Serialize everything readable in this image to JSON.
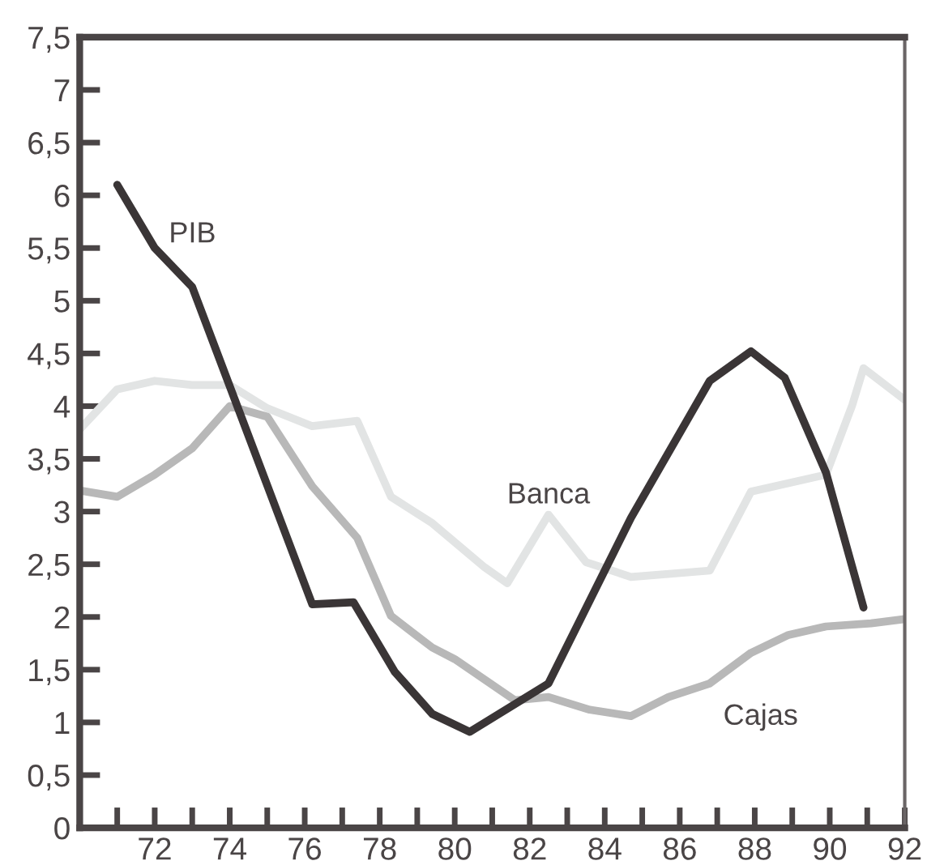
{
  "chart_data": {
    "type": "line",
    "xlim": [
      70,
      92
    ],
    "xticks": [
      {
        "value": 71,
        "label": null
      },
      72,
      {
        "value": 73,
        "label": null
      },
      74,
      {
        "value": 75,
        "label": null
      },
      76,
      {
        "value": 77,
        "label": null
      },
      78,
      {
        "value": 79,
        "label": null
      },
      80,
      {
        "value": 81,
        "label": null
      },
      82,
      {
        "value": 83,
        "label": null
      },
      84,
      {
        "value": 85,
        "label": null
      },
      86,
      {
        "value": 87,
        "label": null
      },
      88,
      {
        "value": 89,
        "label": null
      },
      90,
      {
        "value": 91,
        "label": null
      },
      92
    ],
    "ylim": [
      0,
      7.5
    ],
    "yticks": [
      0,
      {
        "value": 0.5,
        "label": "0,5"
      },
      1,
      {
        "value": 1.5,
        "label": "1,5"
      },
      2,
      {
        "value": 2.5,
        "label": "2,5"
      },
      3,
      {
        "value": 3.5,
        "label": "3,5"
      },
      4,
      {
        "value": 4.5,
        "label": "4,5"
      },
      5,
      {
        "value": 5.5,
        "label": "5,5"
      },
      6,
      {
        "value": 6.5,
        "label": "6,5"
      },
      7,
      {
        "value": 7.5,
        "label": "7,5"
      }
    ],
    "grid": false,
    "marker": "none",
    "line_style": "solid",
    "series": [
      {
        "name": "Banca",
        "color": "#e2e4e4",
        "x": [
          70,
          71,
          72,
          73,
          74,
          75,
          76.2,
          77.4,
          78.3,
          79.4,
          80.8,
          81.4,
          82.5,
          83.5,
          84.7,
          86.8,
          87.9,
          89.9,
          90.6,
          90.9,
          92
        ],
        "values": [
          3.78,
          4.16,
          4.24,
          4.2,
          4.2,
          3.98,
          3.81,
          3.86,
          3.14,
          2.89,
          2.47,
          2.32,
          2.97,
          2.52,
          2.38,
          2.44,
          3.19,
          3.35,
          4.01,
          4.36,
          4.06
        ]
      },
      {
        "name": "Cajas",
        "color": "#b8b8b8",
        "x": [
          70,
          71,
          72,
          73,
          74,
          75,
          76.2,
          77.4,
          78.3,
          79.4,
          80,
          81.6,
          82.5,
          83.6,
          84.7,
          85.7,
          86.8,
          87.9,
          88.9,
          89.9,
          91.1,
          92
        ],
        "values": [
          3.2,
          3.14,
          3.35,
          3.6,
          4.0,
          3.9,
          3.24,
          2.75,
          2.01,
          1.71,
          1.6,
          1.21,
          1.24,
          1.12,
          1.06,
          1.24,
          1.37,
          1.66,
          1.83,
          1.91,
          1.94,
          1.98
        ]
      },
      {
        "name": "PIB",
        "color": "#3a3536",
        "x": [
          71,
          72,
          73,
          76.2,
          77.3,
          78.4,
          79.4,
          80.4,
          82.5,
          84.7,
          86.8,
          87.9,
          88.8,
          89.9,
          90.9
        ],
        "values": [
          6.1,
          5.5,
          5.13,
          2.12,
          2.14,
          1.48,
          1.08,
          0.91,
          1.37,
          2.94,
          4.24,
          4.52,
          4.27,
          3.37,
          2.09
        ]
      }
    ]
  }
}
